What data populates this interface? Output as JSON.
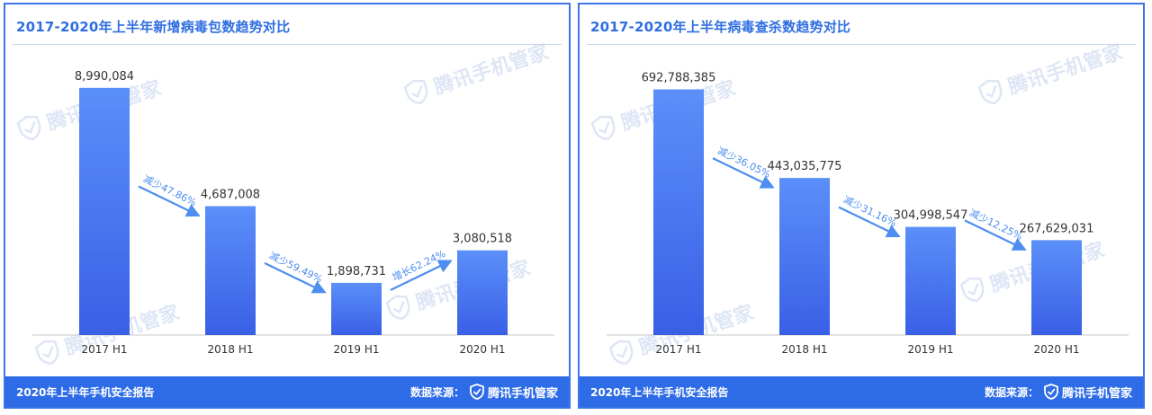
{
  "chart_data": [
    {
      "type": "bar",
      "title": "2017-2020年上半年新增病毒包数趋势对比",
      "categories": [
        "2017 H1",
        "2018 H1",
        "2019 H1",
        "2020 H1"
      ],
      "values": [
        8990084,
        4687008,
        1898731,
        3080518
      ],
      "value_labels": [
        "8,990,084",
        "4,687,008",
        "1,898,731",
        "3,080,518"
      ],
      "ylim": [
        0,
        9800000
      ],
      "bar_color_top": "#5b8ff9",
      "bar_color_bottom": "#3a5fe6",
      "annotations": [
        {
          "text": "减少47.86%",
          "between": [
            0,
            1
          ]
        },
        {
          "text": "减少59.49%",
          "between": [
            1,
            2
          ]
        },
        {
          "text": "增长62.24%",
          "between": [
            2,
            3
          ]
        }
      ]
    },
    {
      "type": "bar",
      "title": "2017-2020年上半年病毒查杀数趋势对比",
      "categories": [
        "2017 H1",
        "2018 H1",
        "2019 H1",
        "2020 H1"
      ],
      "values": [
        692788385,
        443035775,
        304998547,
        267629031
      ],
      "value_labels": [
        "692,788,385",
        "443,035,775",
        "304,998,547",
        "267,629,031"
      ],
      "ylim": [
        0,
        760000000
      ],
      "bar_color_top": "#5b8ff9",
      "bar_color_bottom": "#3a5fe6",
      "annotations": [
        {
          "text": "减少36.05%",
          "between": [
            0,
            1
          ]
        },
        {
          "text": "减少31.16%",
          "between": [
            1,
            2
          ]
        },
        {
          "text": "减少12.25%",
          "between": [
            2,
            3
          ]
        }
      ]
    }
  ],
  "footer": {
    "report": "2020年上半年手机安全报告",
    "source_label": "数据来源：",
    "brand": "腾讯手机管家"
  },
  "watermark": {
    "text": "腾讯手机管家",
    "icon": "shield-check-icon"
  },
  "colors": {
    "accent": "#2e6be6",
    "arrow": "#4d8ef0",
    "text": "#333333"
  }
}
